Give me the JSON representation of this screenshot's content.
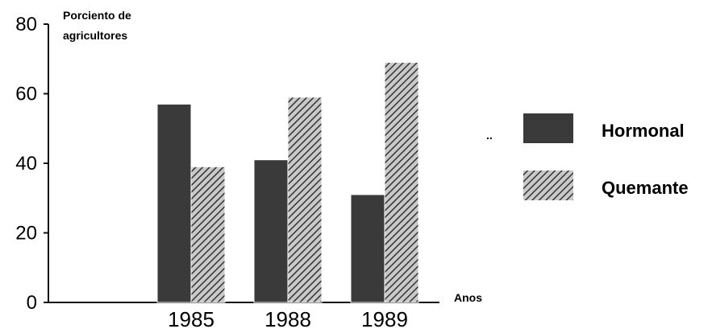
{
  "chart_data": {
    "type": "bar",
    "title": "",
    "ylabel_lines": [
      "Porciento de",
      "agricultores"
    ],
    "xlabel": "Anos",
    "categories": [
      "1985",
      "1988",
      "1989"
    ],
    "series": [
      {
        "name": "Hormonal",
        "values": [
          57,
          41,
          31
        ],
        "color": "#3a3a3a",
        "pattern": "solid"
      },
      {
        "name": "Quemante",
        "values": [
          39,
          59,
          69
        ],
        "color": "#595959",
        "pattern": "hatched"
      }
    ],
    "ylim": [
      0,
      80
    ],
    "yticks": [
      0,
      20,
      40,
      60,
      80
    ],
    "grid": false,
    "legend_position": "right"
  },
  "annotations": {
    "stray_mark": ".."
  }
}
